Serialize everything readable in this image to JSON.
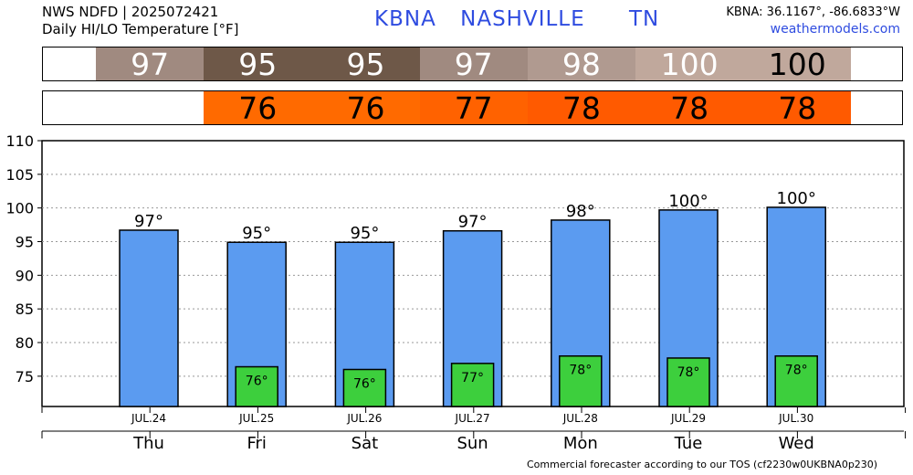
{
  "header": {
    "line1": "NWS NDFD | 2025072421",
    "line2": "Daily HI/LO Temperature [°F]",
    "station": "KBNA",
    "city": "NASHVILLE",
    "state": "TN",
    "coords": "KBNA: 36.1167°, -86.6833°W",
    "site": "weathermodels.com"
  },
  "footer": "Commercial forecaster according to our TOS (cf2230w0UKBNA0p230)",
  "hi_strip": [
    {
      "text": "97",
      "color": "#a08a80",
      "text_color": "#ffffff"
    },
    {
      "text": "95",
      "color": "#6e5848",
      "text_color": "#ffffff"
    },
    {
      "text": "95",
      "color": "#6e5848",
      "text_color": "#ffffff"
    },
    {
      "text": "97",
      "color": "#a08a80",
      "text_color": "#ffffff"
    },
    {
      "text": "98",
      "color": "#b09a90",
      "text_color": "#ffffff"
    },
    {
      "text": "100",
      "color": "#c0a89c",
      "text_color": "#ffffff"
    },
    {
      "text": "100",
      "color": "#c0a89c",
      "text_color": "#000000"
    }
  ],
  "lo_strip": [
    {
      "text": "",
      "color": "#ffffff",
      "text_color": "#000000"
    },
    {
      "text": "76",
      "color": "#ff6a00",
      "text_color": "#000000"
    },
    {
      "text": "76",
      "color": "#ff6a00",
      "text_color": "#000000"
    },
    {
      "text": "77",
      "color": "#ff6200",
      "text_color": "#000000"
    },
    {
      "text": "78",
      "color": "#ff5a00",
      "text_color": "#000000"
    },
    {
      "text": "78",
      "color": "#ff5a00",
      "text_color": "#000000"
    },
    {
      "text": "78",
      "color": "#ff5a00",
      "text_color": "#000000"
    }
  ],
  "chart_data": {
    "type": "bar",
    "categories": [
      "Thu",
      "Fri",
      "Sat",
      "Sun",
      "Mon",
      "Tue",
      "Wed"
    ],
    "dates": [
      "JUL.24",
      "JUL.25",
      "JUL.26",
      "JUL.27",
      "JUL.28",
      "JUL.29",
      "JUL.30"
    ],
    "series": [
      {
        "values": [
          96.7,
          94.9,
          94.9,
          96.6,
          98.2,
          99.7,
          100.1
        ],
        "labels": [
          "97°",
          "95°",
          "95°",
          "97°",
          "98°",
          "100°",
          "100°"
        ],
        "color": "#5b9bf0"
      },
      {
        "values": [
          null,
          76.4,
          76.0,
          76.9,
          78.0,
          77.7,
          78.0
        ],
        "labels": [
          "",
          "76°",
          "76°",
          "77°",
          "78°",
          "78°",
          "78°"
        ],
        "color": "#3dcf3d"
      }
    ],
    "ylim": [
      70.5,
      110
    ],
    "yticks": [
      75,
      80,
      85,
      90,
      95,
      100,
      105,
      110
    ],
    "grid": true
  }
}
